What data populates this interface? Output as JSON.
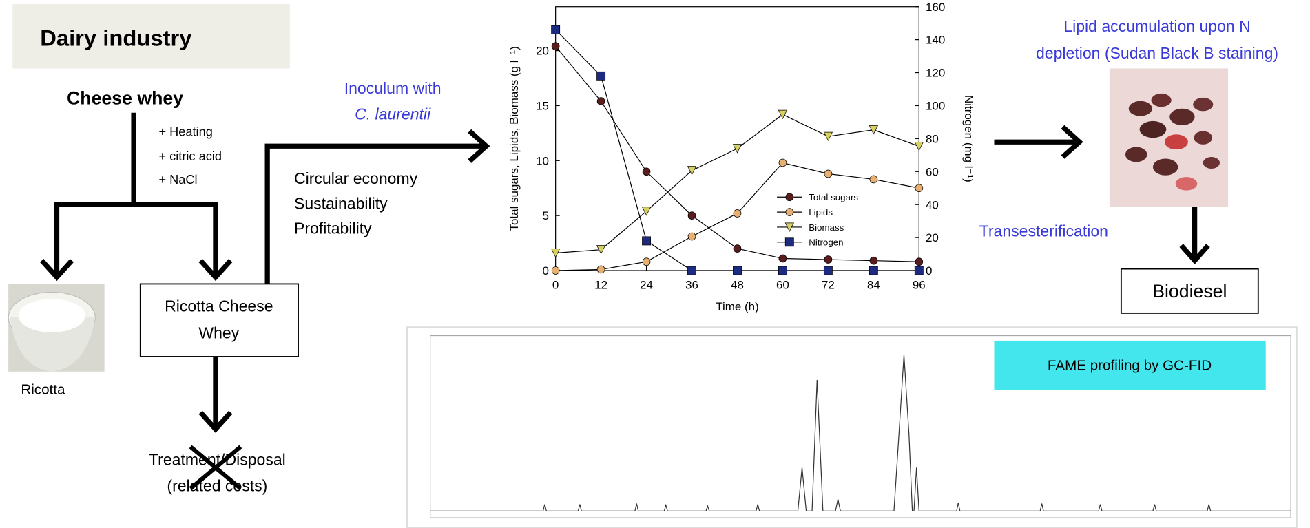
{
  "header": "Dairy industry",
  "flow": {
    "source": "Cheese whey",
    "treatments": [
      "+ Heating",
      "+ citric acid",
      "+ NaCl"
    ],
    "product": "Ricotta",
    "byproduct": [
      "Ricotta Cheese",
      "Whey"
    ],
    "disposal": [
      "Treatment/Disposal",
      "(related costs)"
    ],
    "inoculum": [
      "Inoculum with",
      "C. laurentii"
    ],
    "benefits": [
      "Circular economy",
      "Sustainability",
      "Profitability"
    ]
  },
  "microscopy": {
    "caption": [
      "Lipid accumulation upon N",
      "depletion (Sudan Black B staining)"
    ]
  },
  "transesterification": "Transesterification",
  "biodiesel": "Biodiesel",
  "gc": {
    "label": "FAME profiling by GC-FID"
  },
  "chart_data": {
    "type": "line",
    "xlabel": "Time (h)",
    "ylabel": "Total sugars, Lipids, Biomass (g l⁻¹)",
    "y2label": "Nitrogen (mg l⁻¹)",
    "x": [
      0,
      12,
      24,
      36,
      48,
      60,
      72,
      84,
      96
    ],
    "xlim": [
      0,
      96
    ],
    "xticks": [
      0,
      12,
      24,
      36,
      48,
      60,
      72,
      84,
      96
    ],
    "ylim": [
      0,
      24
    ],
    "yticks": [
      0,
      5,
      10,
      15,
      20
    ],
    "y2lim": [
      0,
      160
    ],
    "y2ticks": [
      0,
      20,
      40,
      60,
      80,
      100,
      120,
      140,
      160
    ],
    "legend": "center right",
    "series": [
      {
        "name": "Total sugars",
        "color": "#5a1c1c",
        "marker": "circle",
        "values": [
          20.4,
          15.4,
          9.0,
          5.0,
          2.0,
          1.1,
          1.0,
          0.9,
          0.8
        ]
      },
      {
        "name": "Lipids",
        "color": "#e8b070",
        "marker": "circle",
        "values": [
          0,
          0.1,
          0.8,
          3.1,
          5.2,
          9.8,
          8.8,
          8.3,
          7.5
        ]
      },
      {
        "name": "Biomass",
        "color": "#d8d060",
        "marker": "triangle-down",
        "values": [
          1.6,
          1.9,
          5.4,
          9.1,
          11.1,
          14.2,
          12.2,
          12.8,
          11.3
        ]
      },
      {
        "name": "Nitrogen",
        "color": "#1c2a80",
        "marker": "square",
        "axis": "y2",
        "values": [
          146,
          118,
          18,
          0,
          0,
          0,
          0,
          0,
          0
        ]
      }
    ]
  }
}
